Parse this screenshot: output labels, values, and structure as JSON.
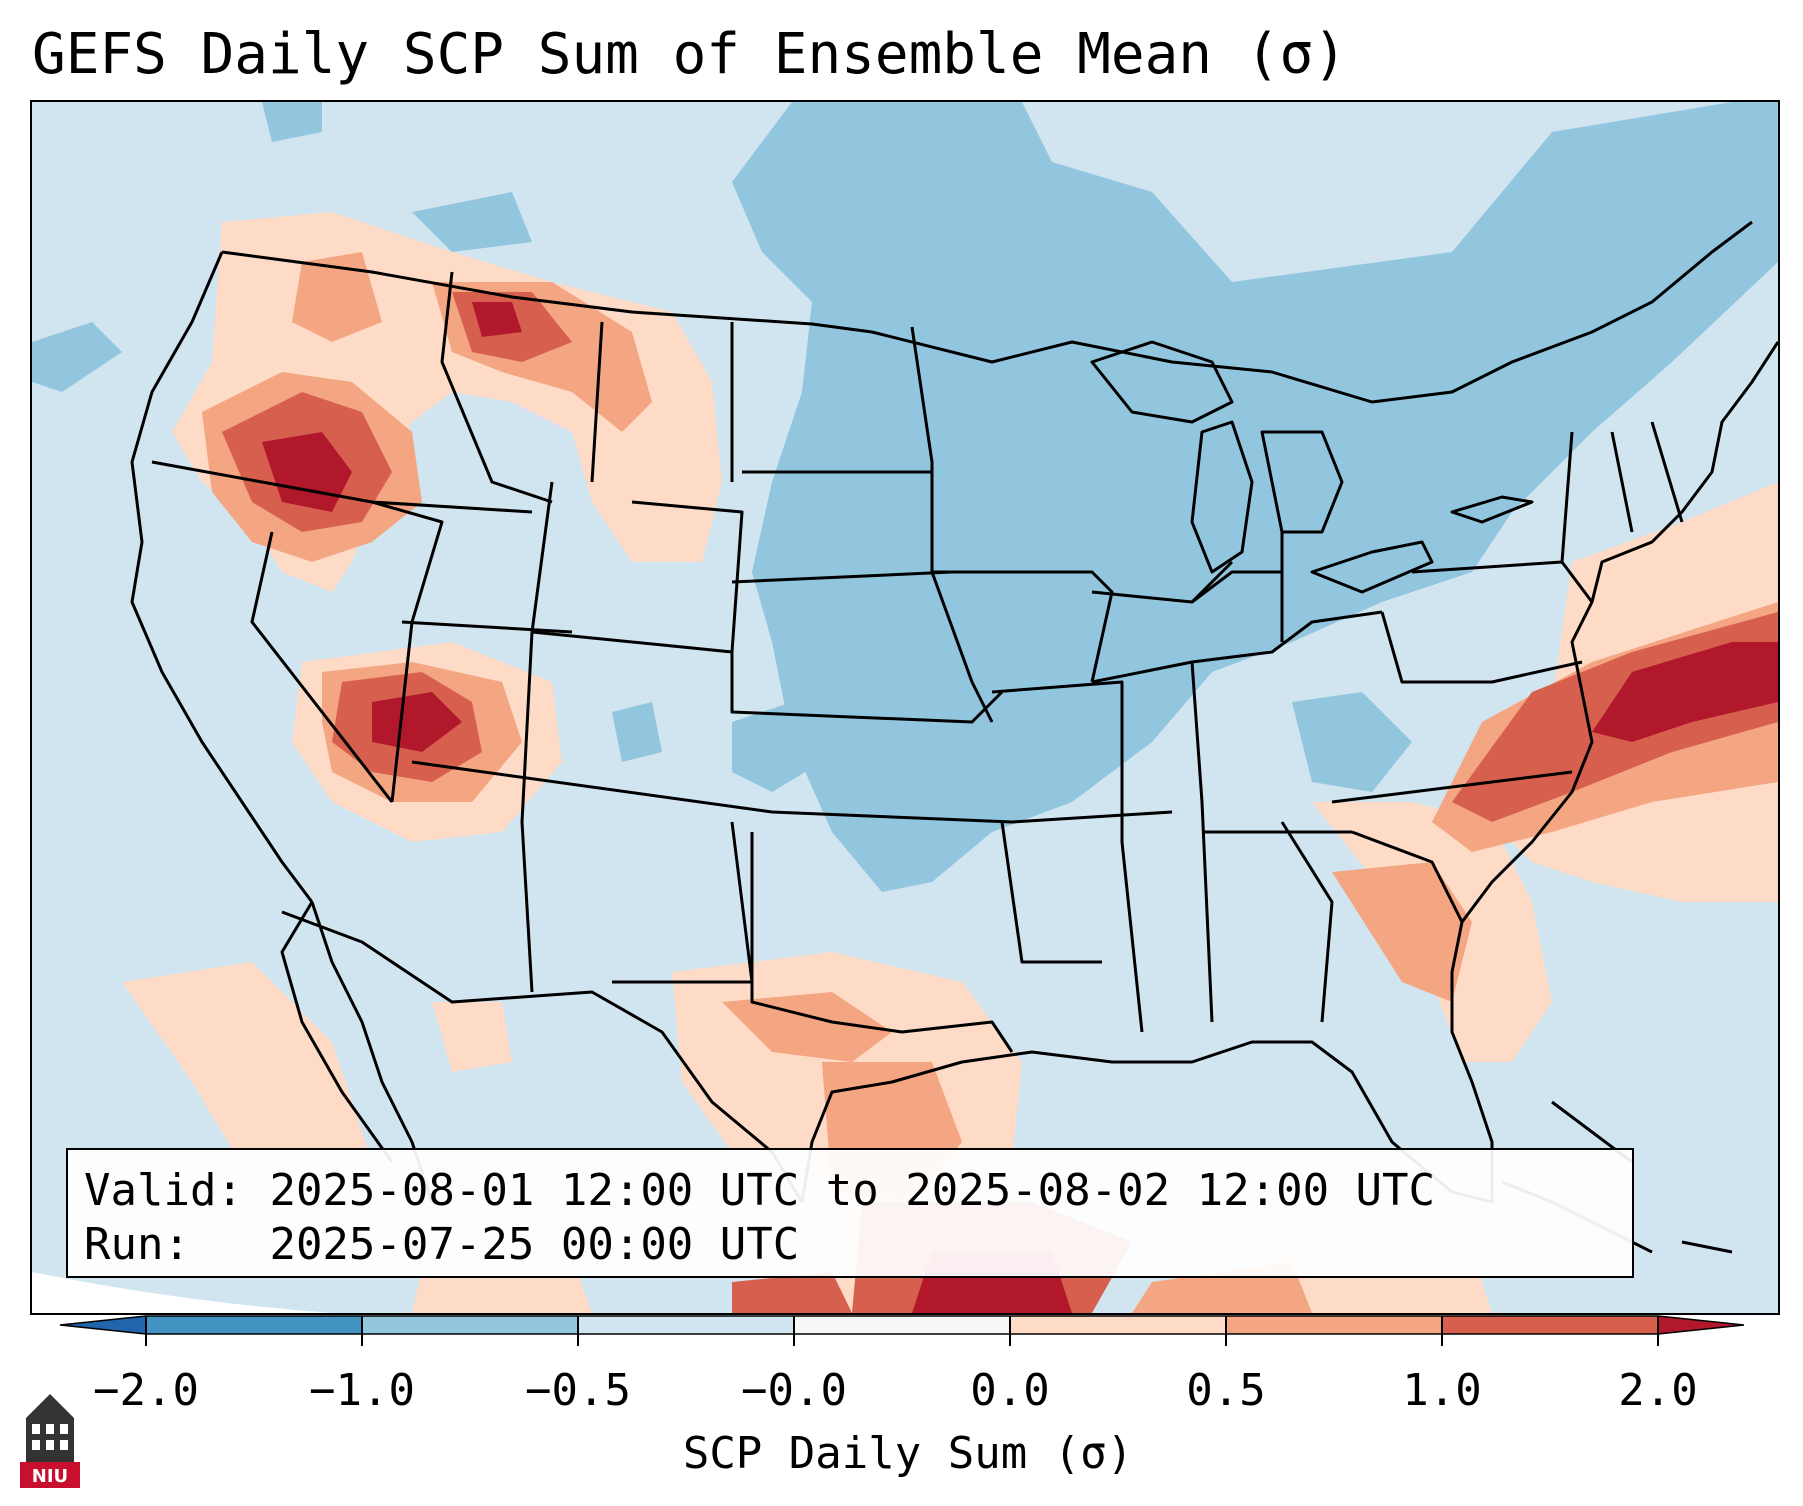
{
  "title": "GEFS Daily SCP Sum of Ensemble Mean (σ)",
  "info": {
    "valid_label": "Valid:",
    "valid_value": "2025-08-01 12:00 UTC to 2025-08-02 12:00 UTC",
    "run_label": "Run:",
    "run_value": "2025-07-25 00:00 UTC"
  },
  "colorbar": {
    "label": "SCP Daily Sum (σ)",
    "ticks": [
      "−2.0",
      "−1.0",
      "−0.5",
      "−0.0",
      "0.0",
      "0.5",
      "1.0",
      "2.0"
    ],
    "colors": [
      "#4393c3",
      "#92c5de",
      "#d1e5f0",
      "#f7f7f7",
      "#fddbc7",
      "#f4a582",
      "#d6604d"
    ],
    "extend_low_color": "#2166ac",
    "extend_high_color": "#b2182b"
  },
  "map": {
    "region": "Contiguous United States",
    "ocean_color": "#d1e5f0",
    "dominant_shading": "#d1e5f0",
    "outside_projection_color": "#ffffff"
  },
  "logo": {
    "text": "NIU",
    "icon": "university-tower-icon"
  }
}
